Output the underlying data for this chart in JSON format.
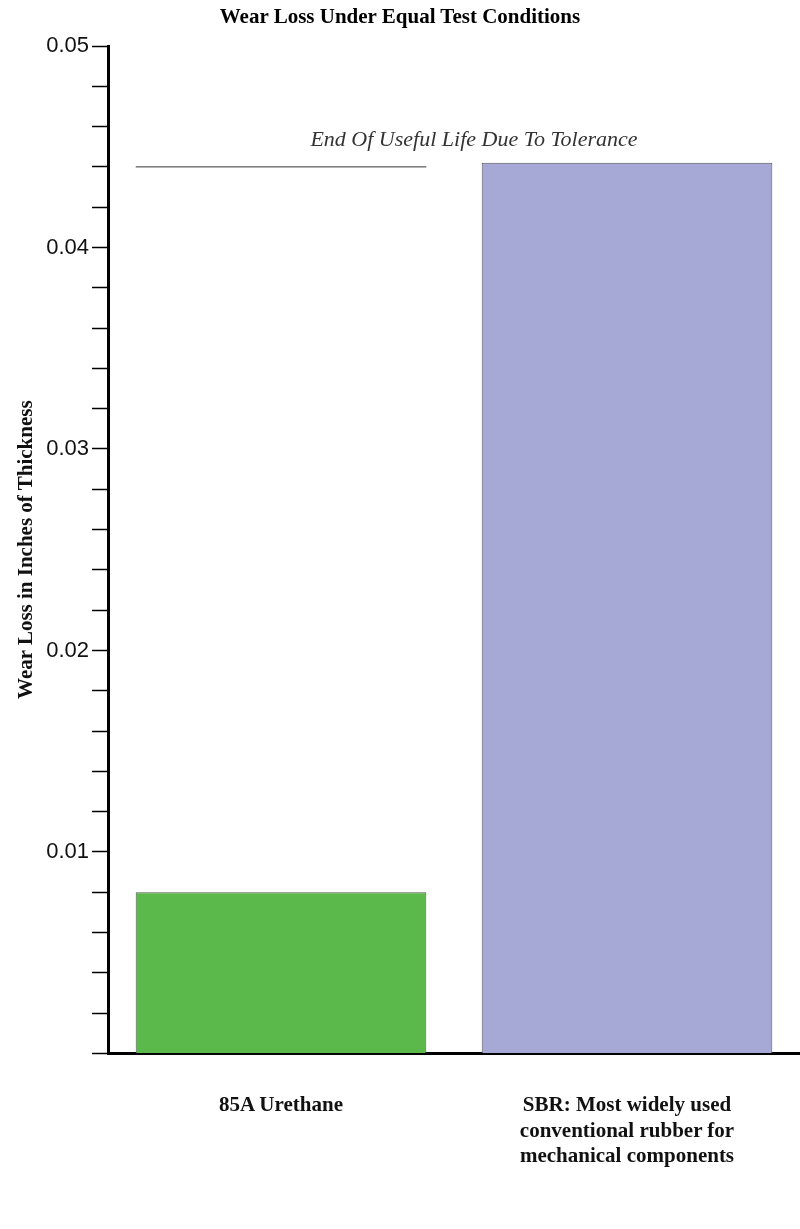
{
  "chart_data": {
    "type": "bar",
    "title": "Wear Loss Under Equal Test Conditions",
    "ylabel": "Wear Loss in Inches of Thickness",
    "categories": [
      "85A Urethane",
      "SBR: Most widely used conventional rubber for mechanical components"
    ],
    "values": [
      0.008,
      0.0442
    ],
    "colors": [
      "#5ab94a",
      "#a6a8d5"
    ],
    "ylim": [
      0,
      0.05
    ],
    "yticks": [
      {
        "value": 0,
        "label": null
      },
      {
        "value": 0.002,
        "label": null
      },
      {
        "value": 0.004,
        "label": null
      },
      {
        "value": 0.006,
        "label": null
      },
      {
        "value": 0.008,
        "label": null
      },
      0.01,
      {
        "value": 0.012,
        "label": null
      },
      {
        "value": 0.014,
        "label": null
      },
      {
        "value": 0.016,
        "label": null
      },
      {
        "value": 0.018,
        "label": null
      },
      0.02,
      {
        "value": 0.022,
        "label": null
      },
      {
        "value": 0.024,
        "label": null
      },
      {
        "value": 0.026,
        "label": null
      },
      {
        "value": 0.028,
        "label": null
      },
      0.03,
      {
        "value": 0.032,
        "label": null
      },
      {
        "value": 0.034,
        "label": null
      },
      {
        "value": 0.036,
        "label": null
      },
      {
        "value": 0.038,
        "label": null
      },
      0.04,
      {
        "value": 0.042,
        "label": null
      },
      {
        "value": 0.044,
        "label": null
      },
      {
        "value": 0.046,
        "label": null
      },
      {
        "value": 0.048,
        "label": null
      },
      0.05
    ],
    "ref_lines": [
      {
        "axis": "y",
        "value": 0.044,
        "label": "End Of Useful Life Due To Tolerance",
        "color": "#333333"
      }
    ],
    "grid": false,
    "legend": false
  }
}
